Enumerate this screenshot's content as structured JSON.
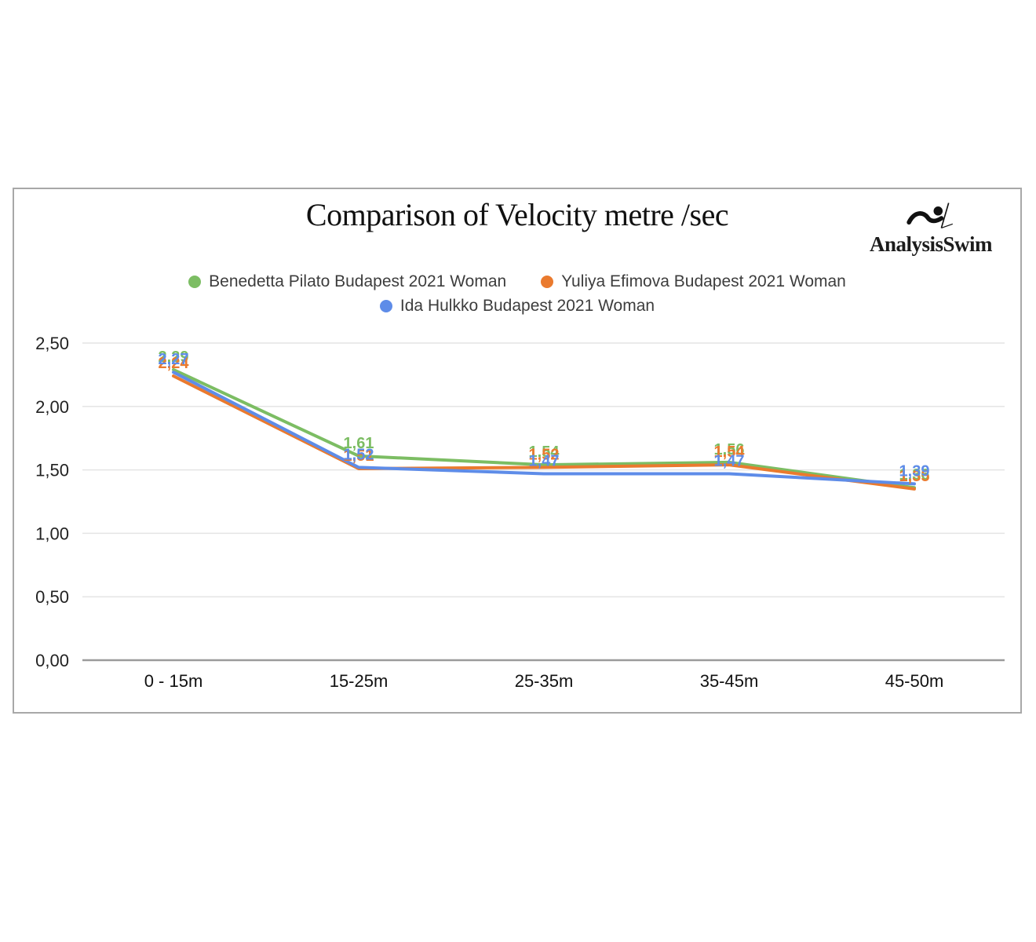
{
  "title": "Comparison of Velocity metre /sec",
  "logo": {
    "text": "AnalysisSwim",
    "icon": "swimmer-icon"
  },
  "legend": [
    {
      "label": "Benedetta Pilato Budapest 2021 Woman",
      "color": "#7cbd63"
    },
    {
      "label": "Yuliya Efimova Budapest 2021 Woman",
      "color": "#ea7a2e"
    },
    {
      "label": "Ida Hulkko Budapest 2021 Woman",
      "color": "#5e8ce8"
    }
  ],
  "chart_data": {
    "type": "line",
    "title": "Comparison of Velocity metre /sec",
    "categories": [
      "0 - 15m",
      "15-25m",
      "25-35m",
      "35-45m",
      "45-50m"
    ],
    "series": [
      {
        "name": "Benedetta Pilato Budapest 2021 Woman",
        "color": "#7cbd63",
        "values": [
          2.29,
          1.61,
          1.54,
          1.56,
          1.36
        ],
        "labels": [
          "2,29",
          "1,61",
          "1,54",
          "1,56",
          "1,36"
        ]
      },
      {
        "name": "Yuliya Efimova Budapest 2021 Woman",
        "color": "#ea7a2e",
        "values": [
          2.24,
          1.51,
          1.52,
          1.54,
          1.35
        ],
        "labels": [
          "2,24",
          "1,51",
          "1,52",
          "1,54",
          "1,35"
        ]
      },
      {
        "name": "Ida Hulkko Budapest 2021 Woman",
        "color": "#5e8ce8",
        "values": [
          2.27,
          1.52,
          1.47,
          1.47,
          1.39
        ],
        "labels": [
          "2,27",
          "1,52",
          "1,47",
          "1,47",
          "1,39"
        ]
      }
    ],
    "xlabel": "",
    "ylabel": "",
    "ylim": [
      0,
      2.5
    ],
    "yticks": [
      "0,00",
      "0,50",
      "1,00",
      "1,50",
      "2,00",
      "2,50"
    ],
    "grid": true,
    "legend_position": "top"
  }
}
